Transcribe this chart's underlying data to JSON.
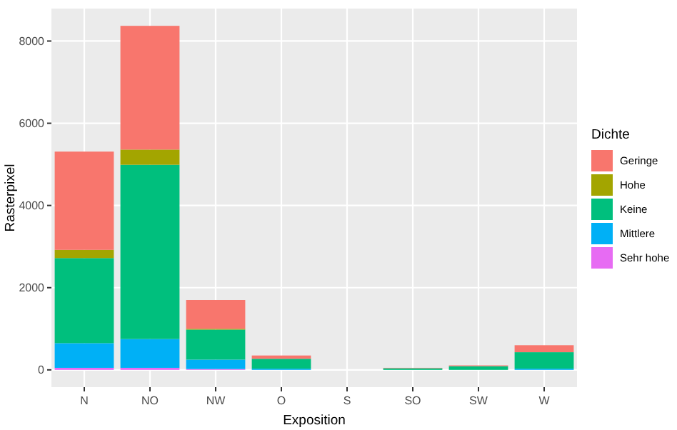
{
  "chart_data": {
    "type": "bar",
    "stacked": true,
    "xlabel": "Exposition",
    "ylabel": "Rasterpixel",
    "legend_title": "Dichte",
    "legend": "right",
    "grid": true,
    "categories": [
      "N",
      "NO",
      "NW",
      "O",
      "S",
      "SO",
      "SW",
      "W"
    ],
    "ylim": [
      -420,
      8790
    ],
    "yticks": [
      0,
      2000,
      4000,
      6000,
      8000
    ],
    "series": [
      {
        "name": "Sehr hohe",
        "color": "#e76bf3",
        "values": [
          50,
          50,
          20,
          0,
          0,
          0,
          0,
          0
        ]
      },
      {
        "name": "Mittlere",
        "color": "#00b0f6",
        "values": [
          600,
          700,
          230,
          30,
          0,
          0,
          0,
          30
        ]
      },
      {
        "name": "Keine",
        "color": "#00bf7d",
        "values": [
          2070,
          4240,
          730,
          240,
          0,
          40,
          90,
          400
        ]
      },
      {
        "name": "Hohe",
        "color": "#a3a500",
        "values": [
          200,
          370,
          20,
          null,
          0,
          0,
          0,
          0
        ]
      },
      {
        "name": "Geringe",
        "color": "#f8766d",
        "values": [
          2390,
          3010,
          700,
          80,
          0,
          10,
          20,
          170
        ]
      }
    ]
  }
}
